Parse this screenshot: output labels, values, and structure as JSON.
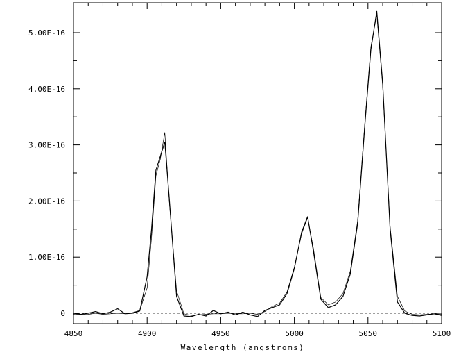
{
  "chart_data": {
    "type": "line",
    "title": "",
    "xlabel": "Wavelength (angstroms)",
    "ylabel": "",
    "xlim": [
      4850,
      5100
    ],
    "ylim": [
      -6e-18,
      5.4e-16
    ],
    "grid": false,
    "legend": "none",
    "x_ticks": [
      4850,
      4900,
      4950,
      5000,
      5050,
      5100
    ],
    "x_tick_labels": [
      "4850",
      "4900",
      "4950",
      "5000",
      "5050",
      "5100"
    ],
    "y_ticks": [
      0,
      1e-16,
      2e-16,
      3e-16,
      4e-16,
      5e-16
    ],
    "y_tick_labels": [
      "0",
      "1.00E-16",
      "2.00E-16",
      "3.00E-16",
      "4.00E-16",
      "5.00E-16"
    ],
    "baseline": 0,
    "x": [
      4850,
      4855,
      4860,
      4865,
      4870,
      4875,
      4880,
      4885,
      4890,
      4895,
      4900,
      4903,
      4906,
      4909,
      4912,
      4915,
      4920,
      4925,
      4930,
      4935,
      4940,
      4945,
      4950,
      4955,
      4960,
      4965,
      4970,
      4975,
      4980,
      4985,
      4990,
      4995,
      5000,
      5005,
      5009,
      5013,
      5018,
      5023,
      5028,
      5033,
      5038,
      5043,
      5048,
      5052,
      5056,
      5060,
      5065,
      5070,
      5075,
      5080,
      5085,
      5090,
      5095,
      5100
    ],
    "series": [
      {
        "style": "solid",
        "values": [
          0.0,
          -2e-18,
          0.0,
          3e-18,
          -1e-18,
          2e-18,
          8e-18,
          -1e-18,
          0.0,
          4e-18,
          6.5e-17,
          1.5e-16,
          2.55e-16,
          2.8e-16,
          3.05e-16,
          2.05e-16,
          3e-17,
          -5e-18,
          -6e-18,
          -2e-18,
          -5e-18,
          5e-18,
          -1e-18,
          2e-18,
          -3e-18,
          2e-18,
          -3e-18,
          -6e-18,
          5e-18,
          1e-17,
          1.5e-17,
          3.5e-17,
          8e-17,
          1.45e-16,
          1.72e-16,
          1.1e-16,
          2.5e-17,
          1e-17,
          1.5e-17,
          3e-17,
          7e-17,
          1.6e-16,
          3.4e-16,
          4.7e-16,
          5.38e-16,
          4.1e-16,
          1.5e-16,
          2e-17,
          0.0,
          -4e-18,
          -5e-18,
          -3e-18,
          -1e-18,
          -4e-18
        ]
      },
      {
        "style": "thin",
        "values": [
          -2e-18,
          -3e-18,
          -2e-18,
          0.0,
          -2e-18,
          -1e-18,
          0.0,
          -1e-18,
          1e-18,
          5e-18,
          4.5e-17,
          1.35e-16,
          2.45e-16,
          2.75e-16,
          3.22e-16,
          2e-16,
          4e-17,
          -1e-18,
          -4e-18,
          -3e-18,
          -2e-18,
          -1e-18,
          -1e-18,
          0.0,
          -1e-18,
          -1e-18,
          0.0,
          -2e-18,
          3e-18,
          1.2e-17,
          1.8e-17,
          3.8e-17,
          8.2e-17,
          1.42e-16,
          1.7e-16,
          1.15e-16,
          2.8e-17,
          1.5e-17,
          2e-17,
          3.5e-17,
          7.5e-17,
          1.65e-16,
          3.45e-16,
          4.75e-16,
          5.32e-16,
          4.05e-16,
          1.55e-16,
          3e-17,
          4e-18,
          -2e-18,
          -3e-18,
          -2e-18,
          -1e-18,
          -2e-18
        ]
      }
    ]
  }
}
